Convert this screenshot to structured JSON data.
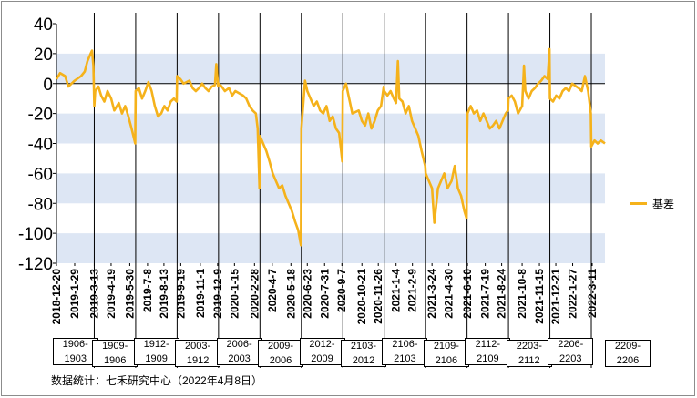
{
  "chart_data": {
    "type": "line",
    "title": "",
    "xlabel": "",
    "ylabel": "",
    "ylim": [
      -120,
      40
    ],
    "yticks": [
      40,
      20,
      0,
      -20,
      -40,
      -60,
      -80,
      -100,
      -120
    ],
    "shaded_bands": [
      [
        0,
        20
      ],
      [
        -40,
        -20
      ],
      [
        -80,
        -60
      ],
      [
        -120,
        -100
      ]
    ],
    "x_tick_labels": [
      "2018-12-20",
      "2019-1-29",
      "2019-3-13",
      "2019-4-19",
      "2019-5-30",
      "2019-7-8",
      "2019-8-13",
      "2019-9-19",
      "2019-11-1",
      "2019-12-9",
      "2020-1-15",
      "2020-2-28",
      "2020-4-7",
      "2020-5-18",
      "2020-6-23",
      "2020-7-31",
      "2020-9-7",
      "2020-10-21",
      "2020-11-26",
      "2021-1-4",
      "2021-2-9",
      "2021-3-24",
      "2021-4-30",
      "2021-6-10",
      "2021-7-19",
      "2021-8-24",
      "2021-10-8",
      "2021-11-15",
      "2021-12-21",
      "2022-1-27",
      "2022-3-11"
    ],
    "contract_labels": [
      "1906-\n1903",
      "1909-\n1906",
      "1912-\n1909",
      "2003-\n1912",
      "2006-\n2003",
      "2009-\n2006",
      "2012-\n2009",
      "2103-\n2012",
      "2106-\n2103",
      "2109-\n2106",
      "2112-\n2109",
      "2203-\n2112",
      "2206-\n2203",
      "2209-\n2206"
    ],
    "contract_switch_dates": [
      "2019-3-13",
      "2019-6-12",
      "2019-9-11",
      "2019-12-11",
      "2020-3-11",
      "2020-6-10",
      "2020-9-9",
      "2020-12-9",
      "2021-3-10",
      "2021-6-9",
      "2021-9-8",
      "2021-12-8",
      "2022-3-9"
    ],
    "series": [
      {
        "name": "基差",
        "color": "#f5b21b",
        "points": [
          [
            "2018-12-20",
            3
          ],
          [
            "2018-12-28",
            7
          ],
          [
            "2019-1-8",
            5
          ],
          [
            "2019-1-15",
            -2
          ],
          [
            "2019-1-22",
            0
          ],
          [
            "2019-1-29",
            2
          ],
          [
            "2019-2-12",
            5
          ],
          [
            "2019-2-20",
            8
          ],
          [
            "2019-2-26",
            15
          ],
          [
            "2019-3-5",
            20
          ],
          [
            "2019-3-8",
            22
          ],
          [
            "2019-3-11",
            12
          ],
          [
            "2019-3-13",
            -15
          ],
          [
            "2019-3-15",
            -5
          ],
          [
            "2019-3-22",
            -2
          ],
          [
            "2019-3-28",
            -8
          ],
          [
            "2019-4-4",
            -12
          ],
          [
            "2019-4-11",
            -5
          ],
          [
            "2019-4-19",
            -10
          ],
          [
            "2019-4-26",
            -18
          ],
          [
            "2019-5-6",
            -13
          ],
          [
            "2019-5-13",
            -20
          ],
          [
            "2019-5-20",
            -15
          ],
          [
            "2019-5-27",
            -22
          ],
          [
            "2019-6-3",
            -30
          ],
          [
            "2019-6-11",
            -40
          ],
          [
            "2019-6-12",
            -5
          ],
          [
            "2019-6-19",
            -3
          ],
          [
            "2019-6-26",
            -10
          ],
          [
            "2019-7-3",
            -5
          ],
          [
            "2019-7-10",
            1
          ],
          [
            "2019-7-17",
            -5
          ],
          [
            "2019-7-24",
            -15
          ],
          [
            "2019-7-31",
            -22
          ],
          [
            "2019-8-7",
            -20
          ],
          [
            "2019-8-14",
            -15
          ],
          [
            "2019-8-21",
            -18
          ],
          [
            "2019-8-28",
            -12
          ],
          [
            "2019-9-4",
            -10
          ],
          [
            "2019-9-10",
            -12
          ],
          [
            "2019-9-11",
            5
          ],
          [
            "2019-9-18",
            3
          ],
          [
            "2019-9-25",
            0
          ],
          [
            "2019-10-8",
            2
          ],
          [
            "2019-10-15",
            -3
          ],
          [
            "2019-10-22",
            -5
          ],
          [
            "2019-10-29",
            -3
          ],
          [
            "2019-11-5",
            0
          ],
          [
            "2019-11-12",
            -3
          ],
          [
            "2019-11-19",
            -5
          ],
          [
            "2019-11-26",
            -2
          ],
          [
            "2019-12-3",
            -1
          ],
          [
            "2019-12-6",
            13
          ],
          [
            "2019-12-10",
            -2
          ],
          [
            "2019-12-11",
            0
          ],
          [
            "2019-12-18",
            -2
          ],
          [
            "2019-12-25",
            -5
          ],
          [
            "2020-1-3",
            -3
          ],
          [
            "2020-1-10",
            -8
          ],
          [
            "2020-1-17",
            -5
          ],
          [
            "2020-2-3",
            -8
          ],
          [
            "2020-2-10",
            -10
          ],
          [
            "2020-2-17",
            -15
          ],
          [
            "2020-2-24",
            -18
          ],
          [
            "2020-3-2",
            -20
          ],
          [
            "2020-3-6",
            -30
          ],
          [
            "2020-3-10",
            -70
          ],
          [
            "2020-3-11",
            -35
          ],
          [
            "2020-3-18",
            -40
          ],
          [
            "2020-3-25",
            -45
          ],
          [
            "2020-4-1",
            -52
          ],
          [
            "2020-4-8",
            -60
          ],
          [
            "2020-4-15",
            -65
          ],
          [
            "2020-4-22",
            -70
          ],
          [
            "2020-4-29",
            -68
          ],
          [
            "2020-5-6",
            -75
          ],
          [
            "2020-5-13",
            -80
          ],
          [
            "2020-5-20",
            -85
          ],
          [
            "2020-5-27",
            -92
          ],
          [
            "2020-6-3",
            -98
          ],
          [
            "2020-6-9",
            -108
          ],
          [
            "2020-6-10",
            -30
          ],
          [
            "2020-6-15",
            -10
          ],
          [
            "2020-6-18",
            2
          ],
          [
            "2020-6-23",
            -5
          ],
          [
            "2020-6-30",
            -10
          ],
          [
            "2020-7-7",
            -15
          ],
          [
            "2020-7-14",
            -12
          ],
          [
            "2020-7-21",
            -18
          ],
          [
            "2020-7-28",
            -20
          ],
          [
            "2020-8-4",
            -15
          ],
          [
            "2020-8-11",
            -25
          ],
          [
            "2020-8-18",
            -22
          ],
          [
            "2020-8-25",
            -30
          ],
          [
            "2020-9-1",
            -33
          ],
          [
            "2020-9-8",
            -52
          ],
          [
            "2020-9-9",
            -5
          ],
          [
            "2020-9-16",
            0
          ],
          [
            "2020-9-23",
            -10
          ],
          [
            "2020-9-30",
            -20
          ],
          [
            "2020-10-14",
            -18
          ],
          [
            "2020-10-21",
            -25
          ],
          [
            "2020-10-28",
            -28
          ],
          [
            "2020-11-4",
            -20
          ],
          [
            "2020-11-11",
            -30
          ],
          [
            "2020-11-18",
            -25
          ],
          [
            "2020-11-25",
            -18
          ],
          [
            "2020-12-2",
            -15
          ],
          [
            "2020-12-8",
            -2
          ],
          [
            "2020-12-9",
            -5
          ],
          [
            "2020-12-16",
            -8
          ],
          [
            "2020-12-23",
            -5
          ],
          [
            "2020-12-30",
            -10
          ],
          [
            "2021-1-4",
            -13
          ],
          [
            "2021-1-8",
            15
          ],
          [
            "2021-1-11",
            -10
          ],
          [
            "2021-1-18",
            -12
          ],
          [
            "2021-1-25",
            -20
          ],
          [
            "2021-2-1",
            -15
          ],
          [
            "2021-2-8",
            -25
          ],
          [
            "2021-2-22",
            -35
          ],
          [
            "2021-3-1",
            -45
          ],
          [
            "2021-3-9",
            -55
          ],
          [
            "2021-3-10",
            -60
          ],
          [
            "2021-3-17",
            -65
          ],
          [
            "2021-3-24",
            -70
          ],
          [
            "2021-3-29",
            -93
          ],
          [
            "2021-4-6",
            -70
          ],
          [
            "2021-4-13",
            -65
          ],
          [
            "2021-4-20",
            -60
          ],
          [
            "2021-4-27",
            -70
          ],
          [
            "2021-5-6",
            -65
          ],
          [
            "2021-5-13",
            -55
          ],
          [
            "2021-5-20",
            -70
          ],
          [
            "2021-5-27",
            -75
          ],
          [
            "2021-6-3",
            -85
          ],
          [
            "2021-6-8",
            -90
          ],
          [
            "2021-6-9",
            -40
          ],
          [
            "2021-6-10",
            -20
          ],
          [
            "2021-6-17",
            -15
          ],
          [
            "2021-6-24",
            -20
          ],
          [
            "2021-7-1",
            -18
          ],
          [
            "2021-7-8",
            -25
          ],
          [
            "2021-7-15",
            -20
          ],
          [
            "2021-7-22",
            -25
          ],
          [
            "2021-7-29",
            -30
          ],
          [
            "2021-8-5",
            -28
          ],
          [
            "2021-8-12",
            -25
          ],
          [
            "2021-8-19",
            -30
          ],
          [
            "2021-8-26",
            -25
          ],
          [
            "2021-9-2",
            -20
          ],
          [
            "2021-9-7",
            -18
          ],
          [
            "2021-9-8",
            -10
          ],
          [
            "2021-9-15",
            -8
          ],
          [
            "2021-9-22",
            -12
          ],
          [
            "2021-9-29",
            -20
          ],
          [
            "2021-10-8",
            -15
          ],
          [
            "2021-10-12",
            12
          ],
          [
            "2021-10-15",
            -5
          ],
          [
            "2021-10-22",
            -10
          ],
          [
            "2021-10-29",
            -5
          ],
          [
            "2021-11-5",
            -3
          ],
          [
            "2021-11-12",
            0
          ],
          [
            "2021-11-19",
            2
          ],
          [
            "2021-11-26",
            5
          ],
          [
            "2021-12-3",
            3
          ],
          [
            "2021-12-7",
            23
          ],
          [
            "2021-12-8",
            -10
          ],
          [
            "2021-12-15",
            -12
          ],
          [
            "2021-12-22",
            -8
          ],
          [
            "2021-12-29",
            -10
          ],
          [
            "2022-1-5",
            -5
          ],
          [
            "2022-1-12",
            -3
          ],
          [
            "2022-1-19",
            -5
          ],
          [
            "2022-1-26",
            0
          ],
          [
            "2022-2-9",
            -3
          ],
          [
            "2022-2-16",
            -5
          ],
          [
            "2022-2-23",
            5
          ],
          [
            "2022-3-2",
            -5
          ],
          [
            "2022-3-8",
            -20
          ],
          [
            "2022-3-9",
            -42
          ],
          [
            "2022-3-16",
            -38
          ],
          [
            "2022-3-23",
            -40
          ],
          [
            "2022-3-30",
            -38
          ],
          [
            "2022-4-8",
            -40
          ]
        ]
      }
    ],
    "legend_position": "right"
  },
  "legend": {
    "label": "基差",
    "color": "#f5b21b"
  },
  "footer": {
    "text": "数据统计：七禾研究中心（2022年4月8日）"
  }
}
